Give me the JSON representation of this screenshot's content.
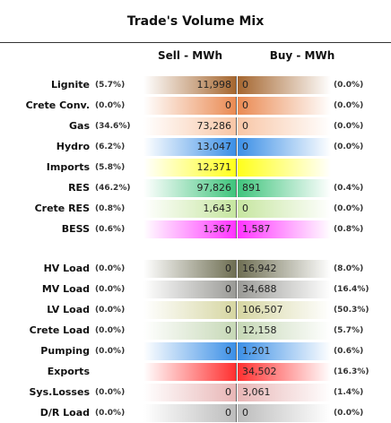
{
  "title": "Trade's Volume Mix",
  "headers": [
    "Sell - MWh",
    "Buy - MWh"
  ],
  "groups": [
    {
      "rows": [
        {
          "label": "Lignite",
          "sell_pct": "(5.7%)",
          "sell": "11,998",
          "buy": "0",
          "buy_pct": "(0.0%)",
          "color": "#a5662f"
        },
        {
          "label": "Crete Conv.",
          "sell_pct": "(0.0%)",
          "sell": "0",
          "buy": "0",
          "buy_pct": "(0.0%)",
          "color": "#ea8a52"
        },
        {
          "label": "Gas",
          "sell_pct": "(34.6%)",
          "sell": "73,286",
          "buy": "0",
          "buy_pct": "(0.0%)",
          "color": "#f8c6a6"
        },
        {
          "label": "Hydro",
          "sell_pct": "(6.2%)",
          "sell": "13,047",
          "buy": "0",
          "buy_pct": "(0.0%)",
          "color": "#3b8fe6"
        },
        {
          "label": "Imports",
          "sell_pct": "(5.8%)",
          "sell": "12,371",
          "buy": null,
          "buy_pct": null,
          "color": "#ffff1a"
        },
        {
          "label": "RES",
          "sell_pct": "(46.2%)",
          "sell": "97,826",
          "buy": "891",
          "buy_pct": "(0.4%)",
          "color": "#3fc47c"
        },
        {
          "label": "Crete RES",
          "sell_pct": "(0.8%)",
          "sell": "1,643",
          "buy": "0",
          "buy_pct": "(0.0%)",
          "color": "#c6e6a0"
        },
        {
          "label": "BESS",
          "sell_pct": "(0.6%)",
          "sell": "1,367",
          "buy": "1,587",
          "buy_pct": "(0.8%)",
          "color": "#ff33ff"
        }
      ]
    },
    {
      "rows": [
        {
          "label": "HV Load",
          "sell_pct": "(0.0%)",
          "sell": "0",
          "buy": "16,942",
          "buy_pct": "(8.0%)",
          "color": "#6e6e52"
        },
        {
          "label": "MV Load",
          "sell_pct": "(0.0%)",
          "sell": "0",
          "buy": "34,688",
          "buy_pct": "(16.4%)",
          "color": "#9a9a96"
        },
        {
          "label": "LV Load",
          "sell_pct": "(0.0%)",
          "sell": "0",
          "buy": "106,507",
          "buy_pct": "(50.3%)",
          "color": "#d6d6a2"
        },
        {
          "label": "Crete Load",
          "sell_pct": "(0.0%)",
          "sell": "0",
          "buy": "12,158",
          "buy_pct": "(5.7%)",
          "color": "#c6d8b6"
        },
        {
          "label": "Pumping",
          "sell_pct": "(0.0%)",
          "sell": "0",
          "buy": "1,201",
          "buy_pct": "(0.6%)",
          "color": "#3b8fe6"
        },
        {
          "label": "Exports",
          "sell_pct": null,
          "sell": null,
          "buy": "34,502",
          "buy_pct": "(16.3%)",
          "color": "#ff3030"
        },
        {
          "label": "Sys.Losses",
          "sell_pct": "(0.0%)",
          "sell": "0",
          "buy": "3,061",
          "buy_pct": "(1.4%)",
          "color": "#e8b6b6"
        },
        {
          "label": "D/R Load",
          "sell_pct": "(0.0%)",
          "sell": "0",
          "buy": "0",
          "buy_pct": "(0.0%)",
          "color": "#bcbcbc"
        }
      ]
    }
  ]
}
